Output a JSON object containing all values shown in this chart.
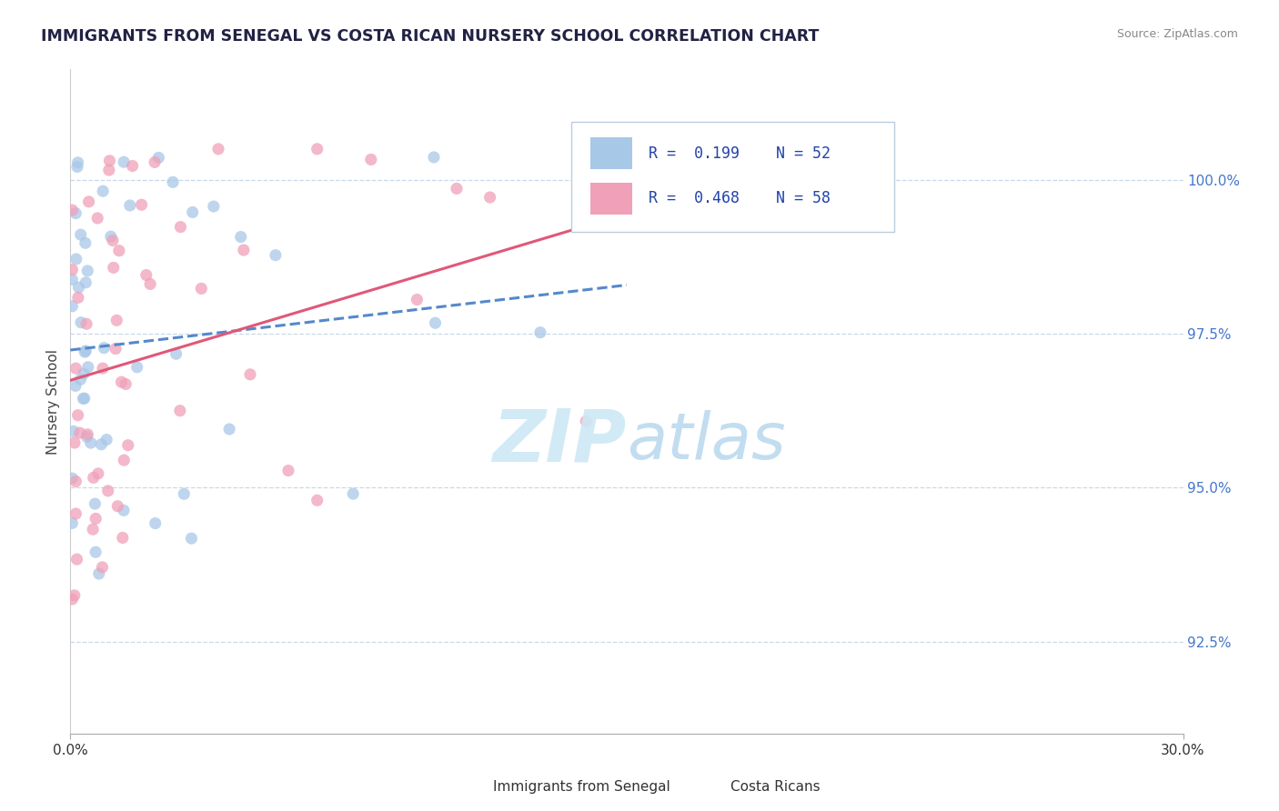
{
  "title": "IMMIGRANTS FROM SENEGAL VS COSTA RICAN NURSERY SCHOOL CORRELATION CHART",
  "source": "Source: ZipAtlas.com",
  "ylabel": "Nursery School",
  "ytick_values": [
    100.0,
    97.5,
    95.0,
    92.5
  ],
  "xmin": 0.0,
  "xmax": 30.0,
  "ymin": 91.0,
  "ymax": 101.8,
  "legend_label1": "Immigrants from Senegal",
  "legend_label2": "Costa Ricans",
  "R1": 0.199,
  "N1": 52,
  "R2": 0.468,
  "N2": 58,
  "color1": "#a8c8e8",
  "color2": "#f0a0b8",
  "trendline1_color": "#5588cc",
  "trendline2_color": "#e05878",
  "watermark_color": "#cde8f5"
}
